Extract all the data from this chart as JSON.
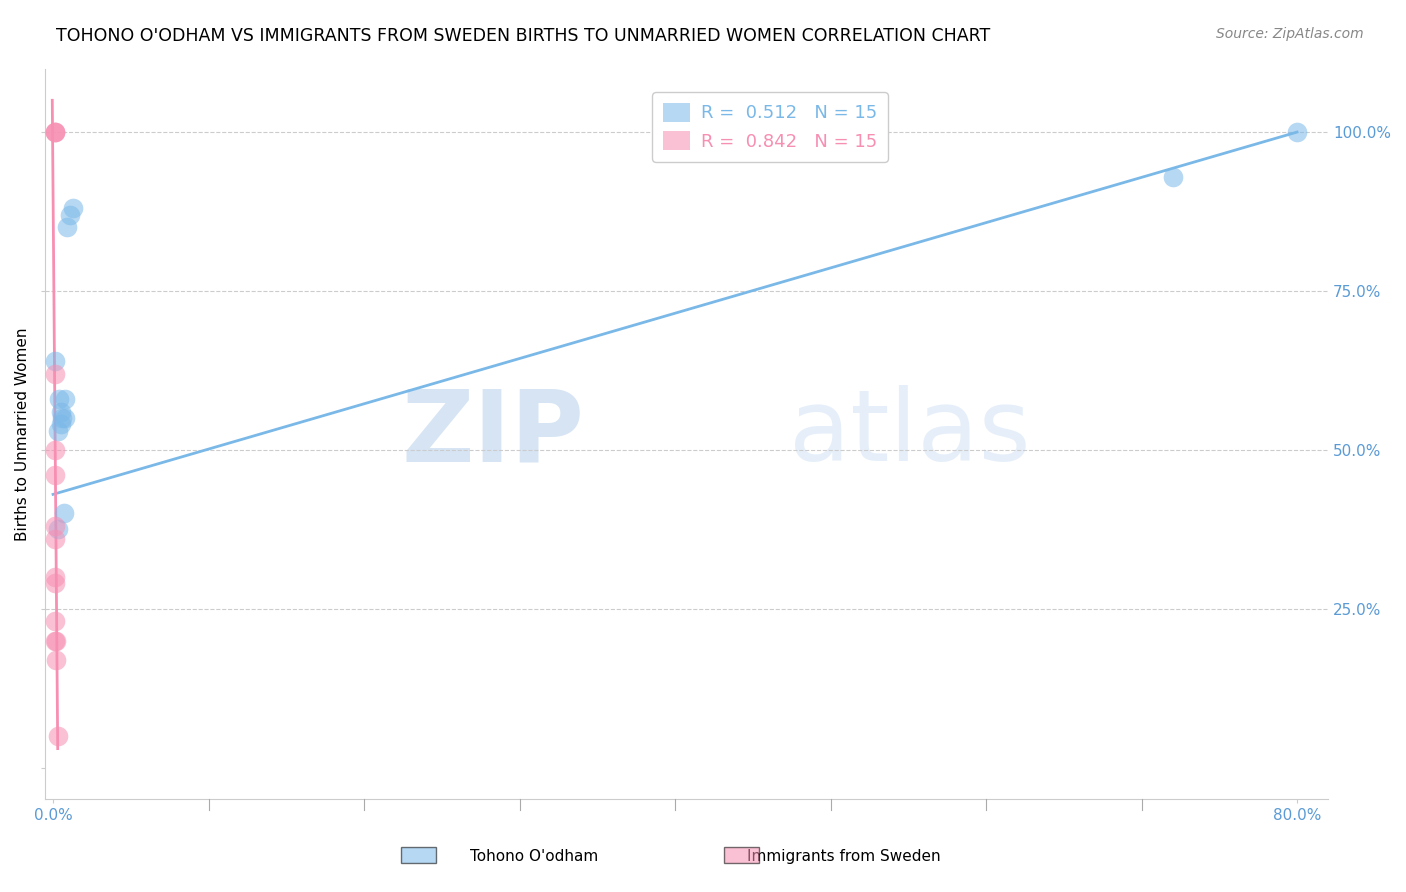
{
  "title": "TOHONO O'ODHAM VS IMMIGRANTS FROM SWEDEN BIRTHS TO UNMARRIED WOMEN CORRELATION CHART",
  "source": "Source: ZipAtlas.com",
  "ylabel": "Births to Unmarried Women",
  "watermark_zip": "ZIP",
  "watermark_atlas": "atlas",
  "legend_blue_text": "R =  0.512   N = 15",
  "legend_pink_text": "R =  0.842   N = 15",
  "legend_label_blue": "Tohono O'odham",
  "legend_label_pink": "Immigrants from Sweden",
  "blue_color": "#7ab8e8",
  "pink_color": "#f78fb3",
  "blue_scatter_x": [
    0.001,
    0.004,
    0.005,
    0.005,
    0.006,
    0.007,
    0.008,
    0.008,
    0.009,
    0.011,
    0.013,
    0.72,
    0.8,
    0.003,
    0.003
  ],
  "blue_scatter_y": [
    0.64,
    0.58,
    0.56,
    0.54,
    0.55,
    0.4,
    0.58,
    0.55,
    0.85,
    0.87,
    0.88,
    0.93,
    1.0,
    0.375,
    0.53
  ],
  "pink_scatter_x": [
    0.001,
    0.001,
    0.001,
    0.001,
    0.001,
    0.001,
    0.001,
    0.001,
    0.001,
    0.001,
    0.001,
    0.001,
    0.002,
    0.002,
    0.003
  ],
  "pink_scatter_y": [
    1.0,
    1.0,
    1.0,
    0.62,
    0.5,
    0.46,
    0.38,
    0.36,
    0.3,
    0.29,
    0.23,
    0.2,
    0.2,
    0.17,
    0.05
  ],
  "blue_line_x": [
    0.0,
    0.8
  ],
  "blue_line_y": [
    0.43,
    1.0
  ],
  "pink_line_x": [
    -0.0005,
    0.003
  ],
  "pink_line_y": [
    1.05,
    0.03
  ],
  "xlim": [
    -0.005,
    0.82
  ],
  "ylim": [
    -0.05,
    1.1
  ],
  "ytick_vals": [
    0.0,
    0.25,
    0.5,
    0.75,
    1.0
  ],
  "ytick_labels": [
    "",
    "25.0%",
    "50.0%",
    "75.0%",
    "100.0%"
  ],
  "xtick_vals": [
    0.0,
    0.8
  ],
  "xtick_labels": [
    "0.0%",
    "80.0%"
  ],
  "title_fontsize": 12.5,
  "source_fontsize": 10,
  "axis_label_fontsize": 11,
  "tick_fontsize": 11
}
